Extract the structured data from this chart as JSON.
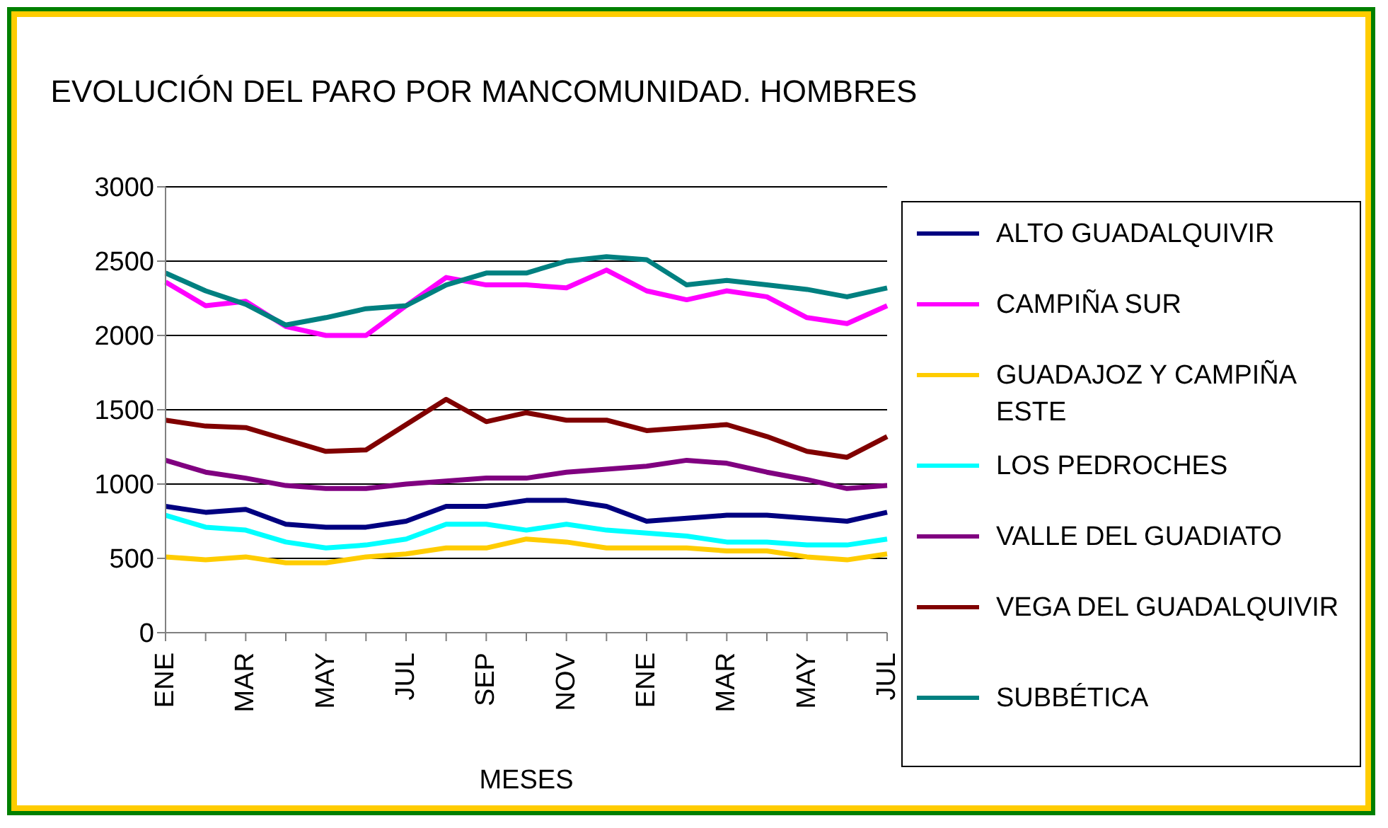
{
  "chart_data": {
    "type": "line",
    "title": "EVOLUCIÓN DEL PARO POR MANCOMUNIDAD. HOMBRES",
    "xlabel": "MESES",
    "categories": [
      "ENE",
      null,
      "MAR",
      null,
      "MAY",
      null,
      "JUL",
      null,
      "SEP",
      null,
      "NOV",
      null,
      "ENE",
      null,
      "MAR",
      null,
      "MAY",
      null,
      "JUL"
    ],
    "ylim": [
      0,
      3000
    ],
    "yticks": [
      0,
      500,
      1000,
      1500,
      2000,
      2500,
      3000
    ],
    "grid": "y",
    "legend": "right",
    "marker": "none",
    "line_style": "solid",
    "series": [
      {
        "name": "ALTO GUADALQUIVIR",
        "color": "#000080",
        "values": [
          850,
          810,
          830,
          730,
          710,
          710,
          750,
          850,
          850,
          890,
          890,
          850,
          750,
          770,
          790,
          790,
          770,
          750,
          810
        ]
      },
      {
        "name": "CAMPIÑA SUR",
        "color": "#ff00ff",
        "values": [
          2360,
          2200,
          2230,
          2060,
          2000,
          2000,
          2200,
          2390,
          2340,
          2340,
          2320,
          2440,
          2300,
          2240,
          2300,
          2260,
          2120,
          2080,
          2200
        ]
      },
      {
        "name": "GUADAJOZ Y CAMPIÑA ESTE",
        "color": "#ffcc00",
        "values": [
          510,
          490,
          510,
          470,
          470,
          510,
          530,
          570,
          570,
          630,
          610,
          570,
          570,
          570,
          550,
          550,
          510,
          490,
          530
        ]
      },
      {
        "name": "LOS PEDROCHES",
        "color": "#00ffff",
        "values": [
          790,
          710,
          690,
          610,
          570,
          590,
          630,
          730,
          730,
          690,
          730,
          690,
          670,
          650,
          610,
          610,
          590,
          590,
          630
        ]
      },
      {
        "name": "VALLE DEL GUADIATO",
        "color": "#800080",
        "values": [
          1160,
          1080,
          1040,
          990,
          970,
          970,
          1000,
          1020,
          1040,
          1040,
          1080,
          1100,
          1120,
          1160,
          1140,
          1080,
          1030,
          970,
          990
        ]
      },
      {
        "name": "VEGA DEL GUADALQUIVIR",
        "color": "#800000",
        "values": [
          1430,
          1390,
          1380,
          1300,
          1220,
          1230,
          1400,
          1570,
          1420,
          1480,
          1430,
          1430,
          1360,
          1380,
          1400,
          1320,
          1220,
          1180,
          1320
        ]
      },
      {
        "name": "SUBBÉTICA",
        "color": "#008080",
        "values": [
          2420,
          2300,
          2210,
          2070,
          2120,
          2180,
          2200,
          2340,
          2420,
          2420,
          2500,
          2530,
          2510,
          2340,
          2370,
          2340,
          2310,
          2260,
          2320
        ]
      }
    ]
  }
}
